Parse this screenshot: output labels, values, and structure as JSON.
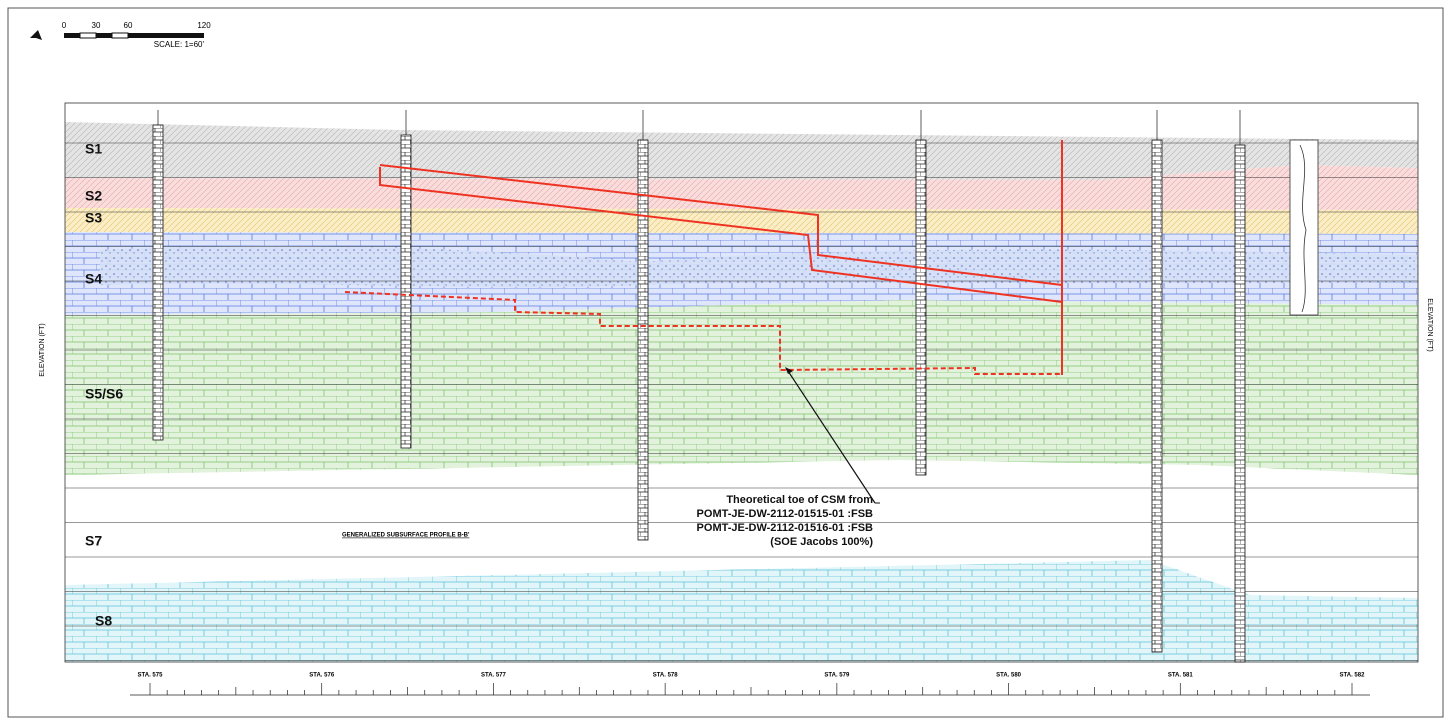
{
  "scale_bar": {
    "ticks": [
      "0",
      "30",
      "60",
      "120"
    ],
    "label": "SCALE: 1=60'"
  },
  "axis_label": "ELEVATION (FT)",
  "layers": [
    "S1",
    "S2",
    "S3",
    "S4",
    "S5/S6",
    "S7",
    "S8"
  ],
  "profile_title": "GENERALIZED SUBSURFACE PROFILE B-B'",
  "annotation": [
    "Theoretical toe of CSM from",
    "POMT-JE-DW-2112-01515-01 :FSB",
    "POMT-JE-DW-2112-01516-01 :FSB",
    "(SOE Jacobs 100%)"
  ],
  "stations": [
    "STA. 575",
    "STA. 576",
    "STA. 577",
    "STA. 578",
    "STA. 579",
    "STA. 580",
    "STA. 581",
    "STA. 582"
  ]
}
